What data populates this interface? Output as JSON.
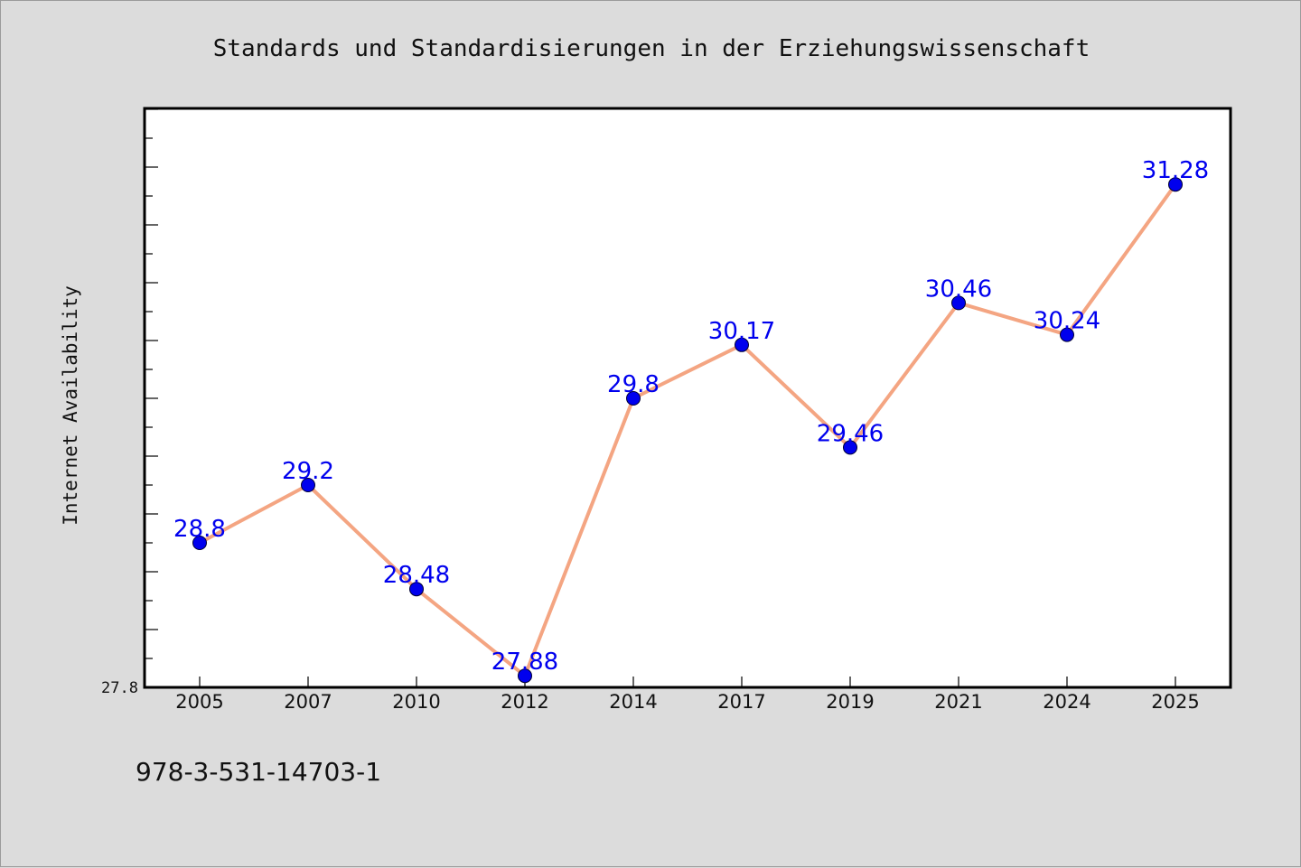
{
  "chart_data": {
    "type": "line",
    "title": "Standards und Standardisierungen in der Erziehungswissenschaft",
    "xlabel": "",
    "ylabel": "Internet Availability",
    "categories": [
      "2005",
      "2007",
      "2010",
      "2012",
      "2014",
      "2017",
      "2019",
      "2021",
      "2024",
      "2025"
    ],
    "series": [
      {
        "values": [
          28.8,
          29.2,
          28.48,
          27.88,
          29.8,
          30.17,
          29.46,
          30.46,
          30.24,
          31.28
        ],
        "labels": [
          "28.8",
          "29.2",
          "28.48",
          "27.88",
          "29.8",
          "30.17",
          "29.46",
          "30.46",
          "30.24",
          "31.28"
        ]
      }
    ],
    "ylim": [
      27.8,
      31.8
    ],
    "y_tick_labels": [
      "27.8"
    ],
    "grid": false,
    "colors": {
      "line": "#f4a582",
      "marker": "#0000ee",
      "label": "#0000ee"
    }
  },
  "footer": {
    "isbn": "978-3-531-14703-1"
  }
}
